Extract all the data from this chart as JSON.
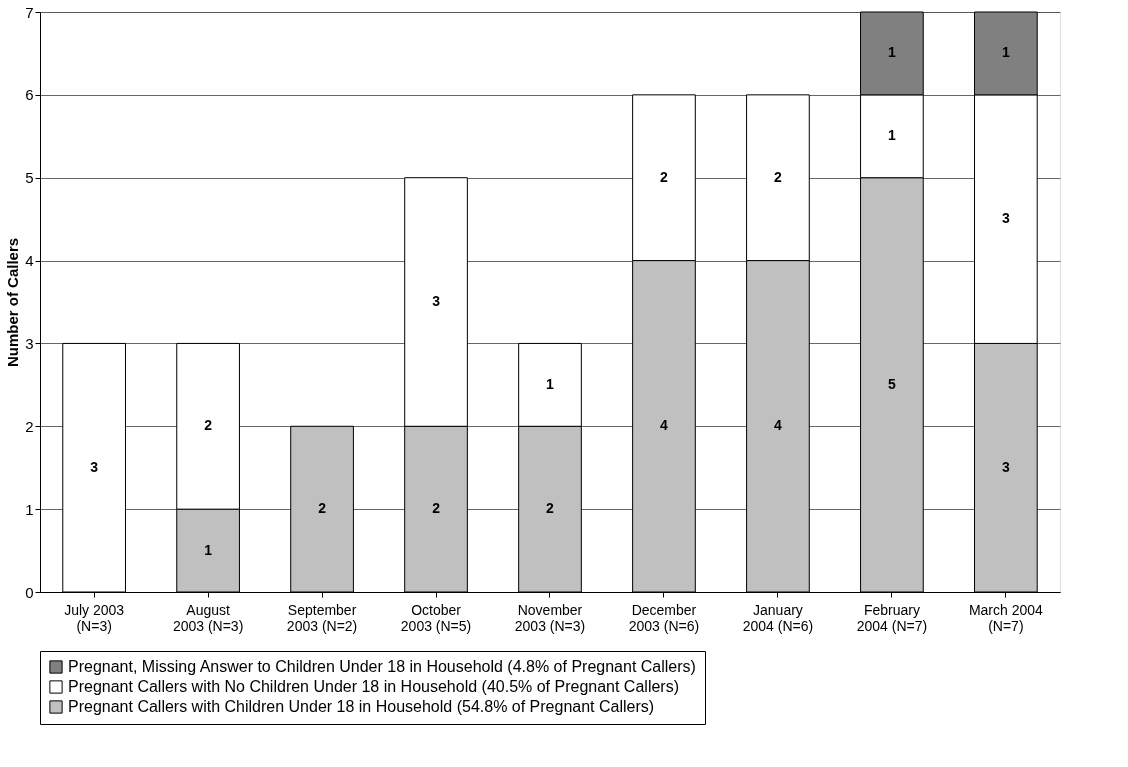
{
  "chart_data": {
    "type": "bar",
    "stacked": true,
    "ylabel": "Number of Callers",
    "categories": [
      "July 2003\n(N=3)",
      "August\n2003 (N=3)",
      "September\n2003 (N=2)",
      "October\n2003 (N=5)",
      "November\n2003 (N=3)",
      "December\n2003 (N=6)",
      "January\n2004 (N=6)",
      "February\n2004 (N=7)",
      "March 2004\n(N=7)"
    ],
    "series": [
      {
        "name": "Pregnant Callers with Children Under 18 in Household (54.8% of Pregnant Callers)",
        "color": "#c0c0c0",
        "values": [
          null,
          1,
          2,
          2,
          2,
          4,
          4,
          5,
          3
        ]
      },
      {
        "name": "Pregnant Callers with No Children Under 18 in Household  (40.5% of Pregnant Callers)",
        "color": "#ffffff",
        "values": [
          3,
          2,
          null,
          3,
          1,
          2,
          2,
          1,
          3
        ]
      },
      {
        "name": "Pregnant, Missing Answer to Children Under 18 in Household (4.8% of Pregnant Callers)",
        "color": "#808080",
        "values": [
          null,
          null,
          null,
          null,
          null,
          null,
          null,
          1,
          1
        ]
      }
    ],
    "ylim": [
      0,
      7
    ],
    "yticks": [
      0,
      1,
      2,
      3,
      4,
      5,
      6,
      7
    ],
    "grid": "y",
    "legend": "bottom",
    "data_labels": true
  }
}
